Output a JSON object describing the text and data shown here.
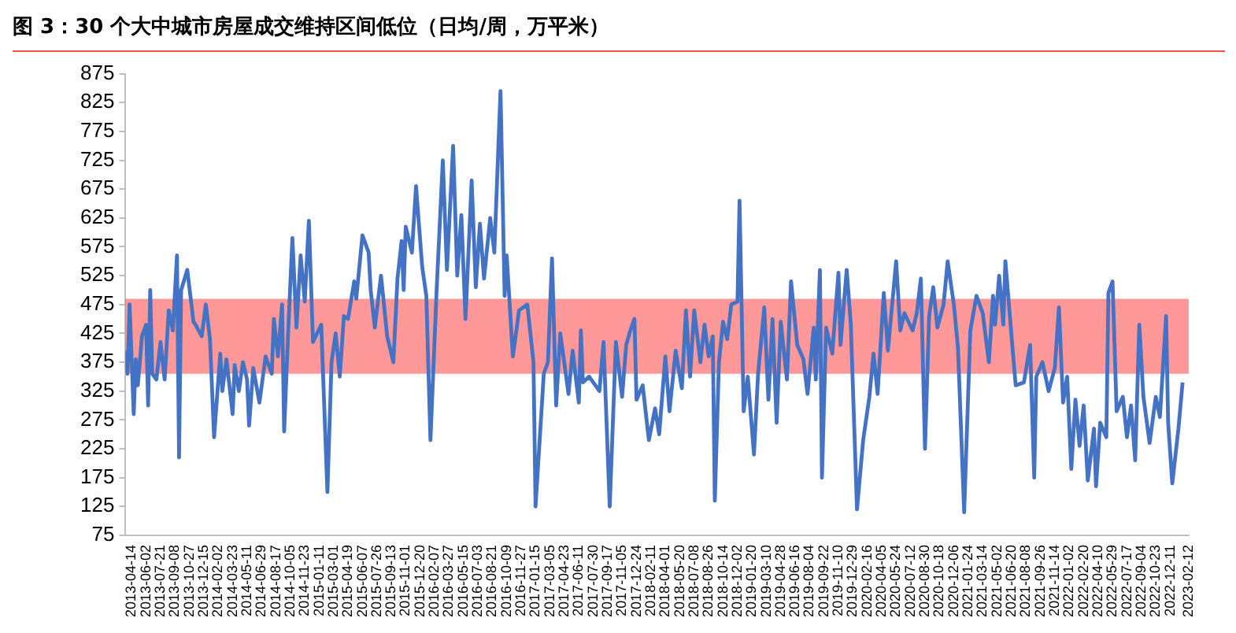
{
  "chart_data": {
    "type": "line",
    "title": "图 3：30 个大中城市房屋成交维持区间低位（日均/周，万平米）",
    "x": [
      "2013-04-14",
      "2013-04-21",
      "2013-04-28",
      "2013-05-12",
      "2013-05-19",
      "2013-05-26",
      "2013-06-09",
      "2013-06-23",
      "2013-06-30",
      "2013-07-07",
      "2013-07-14",
      "2013-07-28",
      "2013-08-11",
      "2013-08-25",
      "2013-09-08",
      "2013-09-22",
      "2013-10-06",
      "2013-10-13",
      "2013-10-20",
      "2013-11-10",
      "2013-12-01",
      "2013-12-08",
      "2013-12-29",
      "2014-01-12",
      "2014-01-26",
      "2014-02-09",
      "2014-03-02",
      "2014-03-09",
      "2014-03-23",
      "2014-04-13",
      "2014-04-20",
      "2014-05-04",
      "2014-05-18",
      "2014-06-01",
      "2014-06-08",
      "2014-06-22",
      "2014-07-13",
      "2014-08-03",
      "2014-08-24",
      "2014-08-31",
      "2014-09-14",
      "2014-09-28",
      "2014-10-05",
      "2014-10-19",
      "2014-11-02",
      "2014-11-16",
      "2014-11-30",
      "2014-12-14",
      "2014-12-28",
      "2015-01-11",
      "2015-02-08",
      "2015-03-01",
      "2015-03-15",
      "2015-03-29",
      "2015-04-12",
      "2015-04-26",
      "2015-05-10",
      "2015-05-31",
      "2015-06-07",
      "2015-06-28",
      "2015-07-19",
      "2015-07-26",
      "2015-08-09",
      "2015-08-30",
      "2015-09-20",
      "2015-10-11",
      "2015-10-25",
      "2015-11-08",
      "2015-11-15",
      "2015-11-22",
      "2015-12-13",
      "2015-12-27",
      "2016-01-17",
      "2016-01-31",
      "2016-02-14",
      "2016-03-06",
      "2016-03-27",
      "2016-04-10",
      "2016-05-01",
      "2016-05-15",
      "2016-05-29",
      "2016-06-12",
      "2016-07-03",
      "2016-07-17",
      "2016-07-31",
      "2016-08-14",
      "2016-09-04",
      "2016-09-18",
      "2016-10-09",
      "2016-10-23",
      "2016-10-30",
      "2016-11-20",
      "2016-12-11",
      "2017-01-08",
      "2017-01-29",
      "2017-02-05",
      "2017-03-05",
      "2017-03-19",
      "2017-04-02",
      "2017-04-16",
      "2017-04-30",
      "2017-05-28",
      "2017-06-11",
      "2017-07-02",
      "2017-07-09",
      "2017-07-16",
      "2017-08-06",
      "2017-09-10",
      "2017-09-24",
      "2017-10-15",
      "2017-11-05",
      "2017-11-26",
      "2017-12-10",
      "2017-12-24",
      "2018-01-07",
      "2018-01-14",
      "2018-02-04",
      "2018-02-25",
      "2018-03-18",
      "2018-04-01",
      "2018-04-22",
      "2018-05-06",
      "2018-05-27",
      "2018-06-17",
      "2018-07-01",
      "2018-07-15",
      "2018-07-29",
      "2018-08-19",
      "2018-09-02",
      "2018-09-16",
      "2018-09-30",
      "2018-10-07",
      "2018-10-21",
      "2018-11-04",
      "2018-11-18",
      "2018-12-02",
      "2018-12-23",
      "2018-12-30",
      "2019-01-13",
      "2019-01-27",
      "2019-02-17",
      "2019-03-03",
      "2019-03-24",
      "2019-04-07",
      "2019-04-21",
      "2019-05-05",
      "2019-05-19",
      "2019-06-09",
      "2019-06-23",
      "2019-07-14",
      "2019-08-04",
      "2019-08-18",
      "2019-09-08",
      "2019-09-15",
      "2019-09-29",
      "2019-10-06",
      "2019-10-20",
      "2019-11-10",
      "2019-12-01",
      "2019-12-08",
      "2019-12-29",
      "2020-01-12",
      "2020-02-02",
      "2020-02-23",
      "2020-03-15",
      "2020-03-29",
      "2020-04-12",
      "2020-05-03",
      "2020-05-17",
      "2020-06-14",
      "2020-06-28",
      "2020-07-12",
      "2020-08-09",
      "2020-08-23",
      "2020-09-06",
      "2020-09-20",
      "2020-10-04",
      "2020-10-18",
      "2020-11-01",
      "2020-11-22",
      "2020-12-06",
      "2020-12-27",
      "2021-01-10",
      "2021-01-31",
      "2021-02-21",
      "2021-03-14",
      "2021-04-04",
      "2021-04-25",
      "2021-05-09",
      "2021-05-16",
      "2021-05-30",
      "2021-06-13",
      "2021-06-20",
      "2021-07-11",
      "2021-07-25",
      "2021-08-22",
      "2021-09-12",
      "2021-09-26",
      "2021-10-03",
      "2021-10-24",
      "2021-11-14",
      "2021-12-05",
      "2021-12-19",
      "2022-01-02",
      "2022-01-16",
      "2022-01-30",
      "2022-02-13",
      "2022-02-27",
      "2022-03-13",
      "2022-03-27",
      "2022-04-17",
      "2022-04-24",
      "2022-05-08",
      "2022-05-29",
      "2022-06-05",
      "2022-06-19",
      "2022-07-03",
      "2022-07-24",
      "2022-08-07",
      "2022-08-21",
      "2022-09-04",
      "2022-09-18",
      "2022-10-02",
      "2022-10-23",
      "2022-11-13",
      "2022-11-27",
      "2022-12-18",
      "2022-12-25",
      "2023-01-08",
      "2023-01-29",
      "2023-02-12"
    ],
    "series": [
      {
        "color": "#4472c4",
        "values": [
          395,
          355,
          475,
          285,
          380,
          335,
          420,
          440,
          300,
          500,
          355,
          345,
          410,
          345,
          465,
          430,
          560,
          210,
          500,
          535,
          445,
          440,
          420,
          475,
          415,
          245,
          390,
          325,
          380,
          285,
          370,
          325,
          375,
          345,
          265,
          365,
          305,
          385,
          355,
          450,
          385,
          475,
          255,
          430,
          590,
          435,
          560,
          480,
          620,
          410,
          440,
          150,
          375,
          425,
          350,
          455,
          450,
          515,
          485,
          595,
          565,
          500,
          435,
          525,
          420,
          375,
          520,
          585,
          500,
          610,
          565,
          680,
          540,
          490,
          240,
          500,
          725,
          535,
          750,
          525,
          630,
          450,
          690,
          505,
          615,
          520,
          625,
          565,
          845,
          490,
          560,
          385,
          465,
          475,
          375,
          125,
          355,
          375,
          555,
          300,
          425,
          320,
          395,
          305,
          430,
          340,
          350,
          325,
          410,
          125,
          410,
          315,
          405,
          430,
          450,
          310,
          335,
          240,
          295,
          250,
          385,
          290,
          395,
          330,
          465,
          350,
          465,
          375,
          440,
          385,
          420,
          135,
          375,
          445,
          415,
          475,
          480,
          655,
          290,
          350,
          215,
          355,
          470,
          310,
          450,
          270,
          445,
          345,
          515,
          405,
          380,
          320,
          435,
          345,
          535,
          175,
          435,
          390,
          530,
          405,
          535,
          440,
          120,
          240,
          315,
          390,
          320,
          495,
          395,
          550,
          430,
          460,
          430,
          460,
          520,
          225,
          455,
          505,
          435,
          475,
          550,
          475,
          400,
          115,
          430,
          490,
          460,
          375,
          490,
          440,
          525,
          440,
          550,
          420,
          335,
          340,
          405,
          175,
          350,
          375,
          325,
          365,
          470,
          305,
          350,
          190,
          310,
          230,
          300,
          170,
          260,
          160,
          270,
          245,
          495,
          515,
          290,
          315,
          245,
          300,
          205,
          440,
          315,
          235,
          315,
          280,
          455,
          270,
          165,
          260,
          340
        ]
      }
    ],
    "xlim": [
      "2013-04-14",
      "2023-03-05"
    ],
    "xticks": [
      "2013-04-14",
      "2013-06-02",
      "2013-07-21",
      "2013-09-08",
      "2013-10-27",
      "2013-12-15",
      "2014-02-02",
      "2014-03-23",
      "2014-05-11",
      "2014-06-29",
      "2014-08-17",
      "2014-10-05",
      "2014-11-23",
      "2015-01-11",
      "2015-03-01",
      "2015-04-19",
      "2015-06-07",
      "2015-07-26",
      "2015-09-13",
      "2015-11-01",
      "2015-12-20",
      "2016-02-07",
      "2016-03-27",
      "2016-05-15",
      "2016-07-03",
      "2016-08-21",
      "2016-10-09",
      "2016-11-27",
      "2017-01-15",
      "2017-03-05",
      "2017-04-23",
      "2017-06-11",
      "2017-07-30",
      "2017-09-17",
      "2017-11-05",
      "2017-12-24",
      "2018-02-11",
      "2018-04-01",
      "2018-05-20",
      "2018-07-08",
      "2018-08-26",
      "2018-10-14",
      "2018-12-02",
      "2019-01-20",
      "2019-03-10",
      "2019-04-28",
      "2019-06-16",
      "2019-08-04",
      "2019-09-22",
      "2019-11-10",
      "2019-12-29",
      "2020-02-16",
      "2020-04-05",
      "2020-05-24",
      "2020-07-12",
      "2020-08-30",
      "2020-10-18",
      "2020-12-06",
      "2021-01-24",
      "2021-03-14",
      "2021-05-02",
      "2021-06-20",
      "2021-08-08",
      "2021-09-26",
      "2021-11-14",
      "2022-01-02",
      "2022-02-20",
      "2022-04-10",
      "2022-05-29",
      "2022-07-17",
      "2022-09-04",
      "2022-10-23",
      "2022-12-11",
      "2023-02-12"
    ],
    "ylim": [
      75,
      875
    ],
    "yticks": [
      75,
      125,
      175,
      225,
      275,
      325,
      375,
      425,
      475,
      525,
      575,
      625,
      675,
      725,
      775,
      825,
      875
    ],
    "bands": [
      {
        "axis": "y",
        "from": 355,
        "to": 485,
        "color": "#ff0000"
      }
    ],
    "grid": false,
    "legend": false
  }
}
